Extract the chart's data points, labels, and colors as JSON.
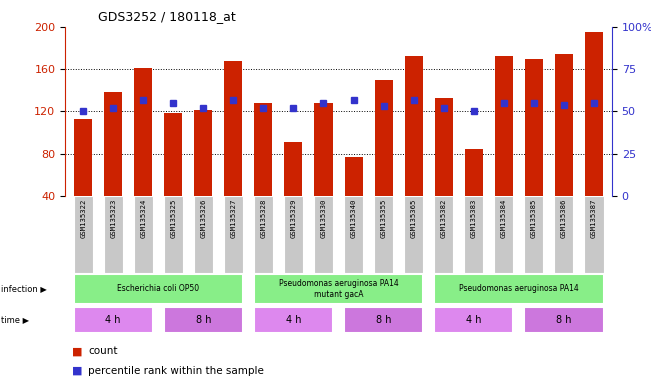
{
  "title": "GDS3252 / 180118_at",
  "samples": [
    "GSM135322",
    "GSM135323",
    "GSM135324",
    "GSM135325",
    "GSM135326",
    "GSM135327",
    "GSM135328",
    "GSM135329",
    "GSM135330",
    "GSM135340",
    "GSM135355",
    "GSM135365",
    "GSM135382",
    "GSM135383",
    "GSM135384",
    "GSM135385",
    "GSM135386",
    "GSM135387"
  ],
  "counts": [
    113,
    138,
    161,
    118,
    121,
    168,
    128,
    91,
    128,
    77,
    150,
    172,
    133,
    84,
    172,
    170,
    174,
    195
  ],
  "percentiles": [
    50,
    52,
    57,
    55,
    52,
    57,
    52,
    52,
    55,
    57,
    53,
    57,
    52,
    50,
    55,
    55,
    54,
    55
  ],
  "ylim_left": [
    40,
    200
  ],
  "ylim_right": [
    0,
    100
  ],
  "yticks_left": [
    40,
    80,
    120,
    160,
    200
  ],
  "yticks_right": [
    0,
    25,
    50,
    75,
    100
  ],
  "bar_color": "#cc2200",
  "dot_color": "#3333cc",
  "grid_color": "#000000",
  "bg_color": "#ffffff",
  "infection_groups": [
    {
      "label": "Escherichia coli OP50",
      "start": 0,
      "end": 6,
      "color": "#88ee88"
    },
    {
      "label": "Pseudomonas aeruginosa PA14\nmutant gacA",
      "start": 6,
      "end": 12,
      "color": "#88ee88"
    },
    {
      "label": "Pseudomonas aeruginosa PA14",
      "start": 12,
      "end": 18,
      "color": "#88ee88"
    }
  ],
  "time_groups": [
    {
      "label": "4 h",
      "start": 0,
      "end": 3,
      "color": "#dd88ee"
    },
    {
      "label": "8 h",
      "start": 3,
      "end": 6,
      "color": "#cc77dd"
    },
    {
      "label": "4 h",
      "start": 6,
      "end": 9,
      "color": "#dd88ee"
    },
    {
      "label": "8 h",
      "start": 9,
      "end": 12,
      "color": "#cc77dd"
    },
    {
      "label": "4 h",
      "start": 12,
      "end": 15,
      "color": "#dd88ee"
    },
    {
      "label": "8 h",
      "start": 15,
      "end": 18,
      "color": "#cc77dd"
    }
  ],
  "legend_count_color": "#cc2200",
  "legend_dot_color": "#3333cc",
  "tick_bg": "#c8c8c8"
}
